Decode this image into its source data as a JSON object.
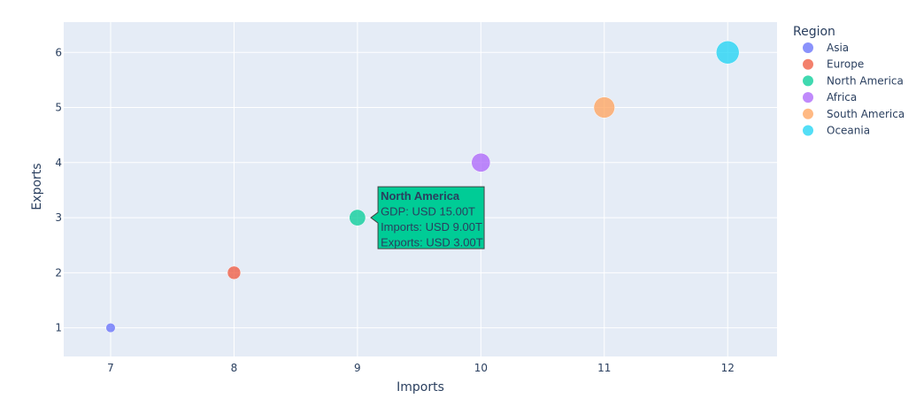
{
  "chart_data": {
    "type": "scatter",
    "xlabel": "Imports",
    "ylabel": "Exports",
    "xlim": [
      6.62,
      12.4
    ],
    "ylim": [
      0.48,
      6.55
    ],
    "xticks": [
      7,
      8,
      9,
      10,
      11,
      12
    ],
    "yticks": [
      1,
      2,
      3,
      4,
      5,
      6
    ],
    "grid": true,
    "legend_title": "Region",
    "legend_position": "right",
    "series": [
      {
        "name": "Asia",
        "x": 7,
        "y": 1,
        "gdp": 5,
        "color": "#636efa"
      },
      {
        "name": "Europe",
        "x": 8,
        "y": 2,
        "gdp": 10,
        "color": "#EF553B"
      },
      {
        "name": "North America",
        "x": 9,
        "y": 3,
        "gdp": 15,
        "color": "#00cc96"
      },
      {
        "name": "Africa",
        "x": 10,
        "y": 4,
        "gdp": 20,
        "color": "#ab63fa"
      },
      {
        "name": "South America",
        "x": 11,
        "y": 5,
        "gdp": 25,
        "color": "#FFA15A"
      },
      {
        "name": "Oceania",
        "x": 12,
        "y": 6,
        "gdp": 30,
        "color": "#19d3f3"
      }
    ],
    "hover": {
      "series": "North America",
      "title": "North America",
      "lines": [
        "GDP: USD 15.00T",
        "Imports: USD 9.00T",
        "Exports: USD 3.00T"
      ]
    }
  }
}
